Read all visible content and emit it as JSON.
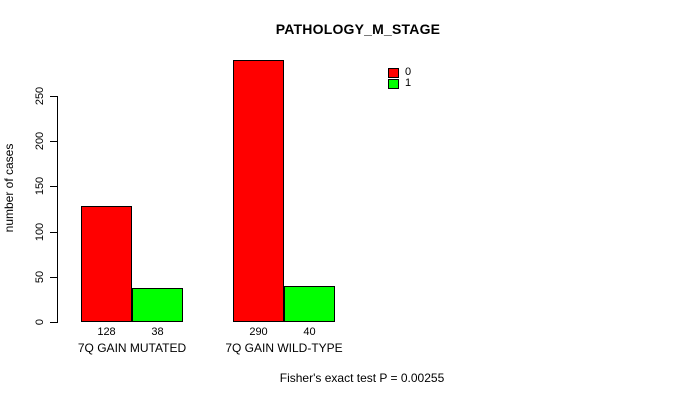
{
  "chart_data": {
    "type": "bar",
    "title": "PATHOLOGY_M_STAGE",
    "ylabel": "number of cases",
    "xlabel": "",
    "categories": [
      "7Q GAIN MUTATED",
      "7Q GAIN WILD-TYPE"
    ],
    "series": [
      {
        "name": "0",
        "color": "#ff0000",
        "values": [
          128,
          290
        ]
      },
      {
        "name": "1",
        "color": "#00ff00",
        "values": [
          38,
          40
        ]
      }
    ],
    "bar_value_labels": true,
    "yticks": [
      0,
      50,
      100,
      150,
      200,
      250
    ],
    "ylim": [
      0,
      250
    ],
    "grid": false,
    "legend_position": "top-right",
    "annotation": "Fisher's exact test P = 0.00255"
  }
}
